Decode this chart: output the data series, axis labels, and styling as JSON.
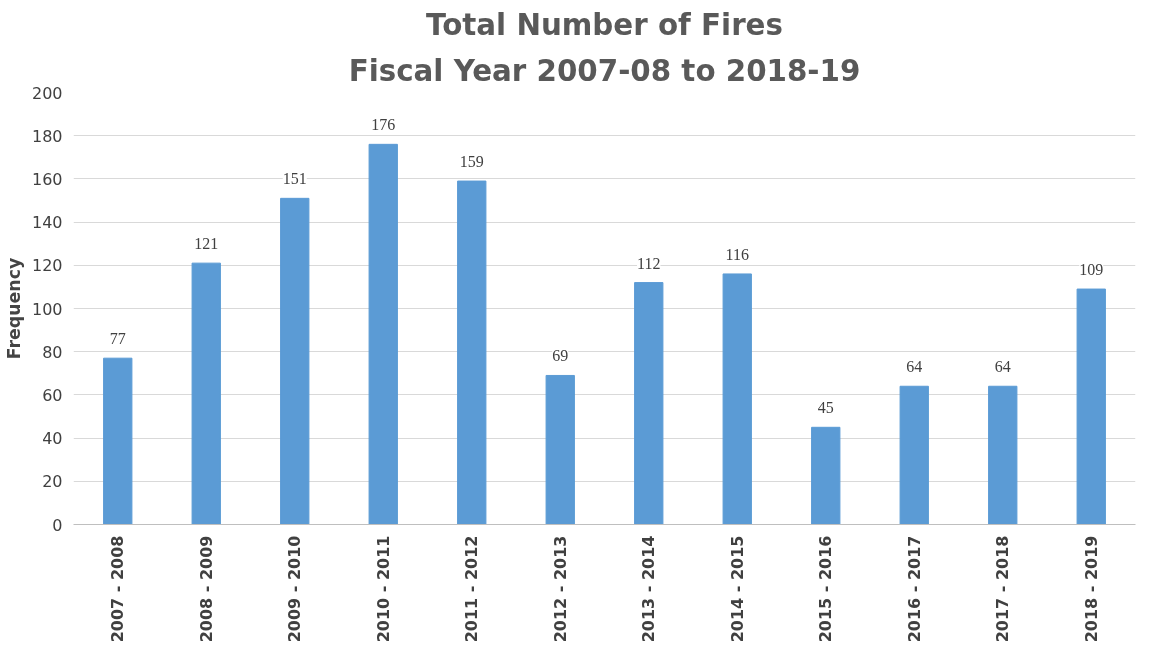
{
  "chart_data": {
    "type": "bar",
    "title": "Total Number of Fires",
    "subtitle": "Fiscal Year 2007-08 to 2018-19",
    "ylabel": "Frequency",
    "categories": [
      "2007 - 2008",
      "2008 - 2009",
      "2009 - 2010",
      "2010 - 2011",
      "2011 - 2012",
      "2012 - 2013",
      "2013 - 2014",
      "2014 - 2015",
      "2015 - 2016",
      "2016 - 2017",
      "2017 - 2018",
      "2018 - 2019"
    ],
    "values": [
      77,
      121,
      151,
      176,
      159,
      69,
      112,
      116,
      45,
      64,
      64,
      109
    ],
    "color": "#5b9bd5",
    "ylim": [
      0,
      200
    ],
    "yticks": [
      0,
      20,
      40,
      60,
      80,
      100,
      120,
      140,
      160,
      180,
      200
    ],
    "grid": "y",
    "data_labels": true
  }
}
